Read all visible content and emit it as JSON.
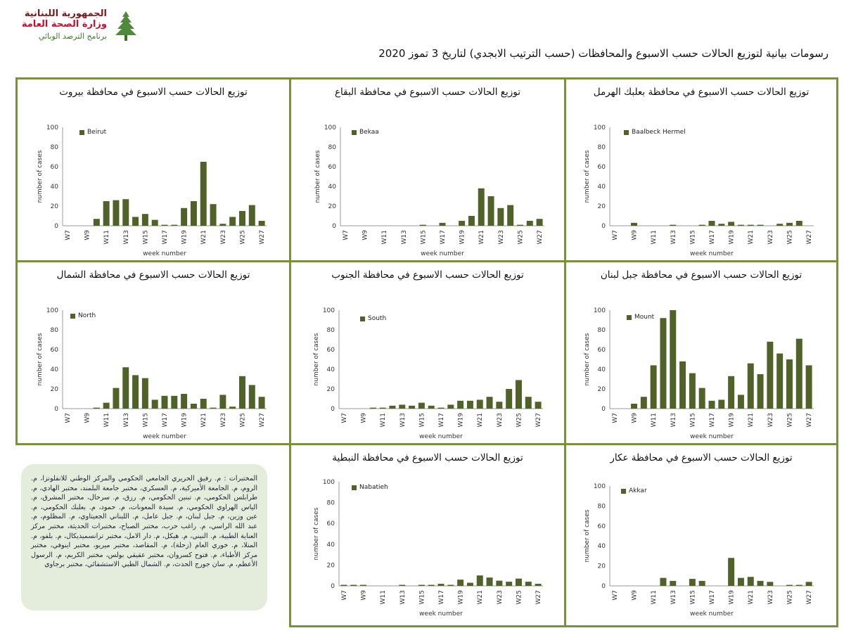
{
  "header": {
    "logo_line1": "الجمهورية اللبنانية",
    "logo_line2": "وزارة الصحة العامة",
    "logo_line3": "برنامج الترصد الوبائي",
    "title": "رسومات بيانية لتوزيع الحالات حسب الاسبوع والمحافظات (حسب الترتيب الابجدي) لتاريخ 3 تموز 2020"
  },
  "colors": {
    "bar": "#4f6228",
    "border": "#76923c",
    "note_bg": "#e4eddc"
  },
  "note": {
    "text": "المختبرات : م. رفيق الحريري الجامعي الحكومي والمركز الوطني للانفلونزا، م. الروم، م. الجامعة الأميركية، م. العسكري، مختبر جامعة البلمند، مختبر الهادي، م. طرابلس الحكومي، م. تبنين الحكومي، م. رزق، م. سرحال، مختبر المشرق، م. الياس الهراوي الحكومي، م. سيدة المعونات، م. حمود، م. بعلبك الحكومي، م. عين وزين، م. جبل لبنان، م. جبل عامل، م. اللبناني الجعيتاوي، م. المظلوم، م. عبد الله الراسي، م. راغب حرب، مختبر الصباح، مختبرات الحديثة، مختبر مركز العناية الطبية، م. النيني، م. هيكل، م. دار الامل، مختبر ترانسميديكال، م. بلفو، م. المنلا، م. خوري العام (زحلة)، م. المقاصد، مختبر ميريو، مختبر اينوفي، مختبر مركز الأطباء، م. فتوح كسروان، مختبر عقيقي بولس، مختبر الكريم، م. الرسول الأعظم، م. سان جورج الحدث، م. الشمال الطبي الاستشفائي، مختبر برجاوي"
  },
  "chart_data": [
    {
      "type": "bar",
      "title": "توزيع الحالات حسب الاسبوع في محافظة بيروت",
      "series": [
        {
          "name": "Beirut",
          "values": [
            0,
            0,
            0,
            7,
            25,
            26,
            27,
            9,
            12,
            6,
            1,
            1,
            18,
            25,
            65,
            22,
            2,
            9,
            15,
            21,
            5
          ]
        }
      ],
      "categories": [
        "W7",
        "W8",
        "W9",
        "W10",
        "W11",
        "W12",
        "W13",
        "W14",
        "W15",
        "W16",
        "W17",
        "W18",
        "W19",
        "W20",
        "W21",
        "W22",
        "W23",
        "W24",
        "W25",
        "W26",
        "W27"
      ],
      "xtick_labels": [
        "W7",
        "W9",
        "W11",
        "W13",
        "W15",
        "W17",
        "W19",
        "W21",
        "W23",
        "W25",
        "W27"
      ],
      "xlabel": "week number",
      "ylabel": "number of cases",
      "ylim": [
        0,
        100
      ],
      "yticks": [
        0,
        20,
        40,
        60,
        80,
        100
      ],
      "legend_position": "top-left"
    },
    {
      "type": "bar",
      "title": "توزيع الحالات حسب الاسبوع في محافظة البقاع",
      "series": [
        {
          "name": "Bekaa",
          "values": [
            0,
            0,
            0,
            0,
            0,
            0,
            0,
            0,
            1,
            0,
            3,
            0,
            5,
            10,
            38,
            30,
            18,
            21,
            1,
            5,
            7
          ]
        }
      ],
      "categories": [
        "W7",
        "W8",
        "W9",
        "W10",
        "W11",
        "W12",
        "W13",
        "W14",
        "W15",
        "W16",
        "W17",
        "W18",
        "W19",
        "W20",
        "W21",
        "W22",
        "W23",
        "W24",
        "W25",
        "W26",
        "W27"
      ],
      "xtick_labels": [
        "W7",
        "W9",
        "W11",
        "W13",
        "W15",
        "W17",
        "W19",
        "W21",
        "W23",
        "W25",
        "W27"
      ],
      "xlabel": "week number",
      "ylabel": "number of cases",
      "ylim": [
        0,
        100
      ],
      "yticks": [
        0,
        20,
        40,
        60,
        80,
        100
      ],
      "legend_position": "top-left"
    },
    {
      "type": "bar",
      "title": "توزيع الحالات حسب الاسبوع في محافظة بعلبك الهرمل",
      "series": [
        {
          "name": "Baalbeck Hermel",
          "values": [
            0,
            0,
            3,
            0,
            0,
            0,
            1,
            0,
            0,
            1,
            5,
            2,
            4,
            1,
            1,
            1,
            0,
            2,
            3,
            5,
            0
          ]
        }
      ],
      "categories": [
        "W7",
        "W8",
        "W9",
        "W10",
        "W11",
        "W12",
        "W13",
        "W14",
        "W15",
        "W16",
        "W17",
        "W18",
        "W19",
        "W20",
        "W21",
        "W22",
        "W23",
        "W24",
        "W25",
        "W26",
        "W27"
      ],
      "xtick_labels": [
        "W7",
        "W9",
        "W11",
        "W13",
        "W15",
        "W17",
        "W19",
        "W21",
        "W23",
        "W25",
        "W27"
      ],
      "xlabel": "week number",
      "ylabel": "number of cases",
      "ylim": [
        0,
        100
      ],
      "yticks": [
        0,
        20,
        40,
        60,
        80,
        100
      ],
      "legend_position": "top-left"
    },
    {
      "type": "bar",
      "title": "توزيع الحالات حسب الاسبوع في محافظة الشمال",
      "series": [
        {
          "name": "North",
          "values": [
            0,
            0,
            0,
            1,
            6,
            21,
            42,
            34,
            31,
            9,
            13,
            13,
            15,
            5,
            10,
            1,
            14,
            2,
            33,
            24,
            12
          ]
        }
      ],
      "categories": [
        "W7",
        "W8",
        "W9",
        "W10",
        "W11",
        "W12",
        "W13",
        "W14",
        "W15",
        "W16",
        "W17",
        "W18",
        "W19",
        "W20",
        "W21",
        "W22",
        "W23",
        "W24",
        "W25",
        "W26",
        "W27"
      ],
      "xtick_labels": [
        "W7",
        "W9",
        "W11",
        "W13",
        "W15",
        "W17",
        "W19",
        "W21",
        "W23",
        "W25",
        "W27"
      ],
      "xlabel": "week number",
      "ylabel": "number of cases",
      "ylim": [
        0,
        100
      ],
      "yticks": [
        0,
        20,
        40,
        60,
        80,
        100
      ],
      "legend_position": "top-left"
    },
    {
      "type": "bar",
      "title": "توزيع الحالات حسب الاسبوع في محافظة الجنوب",
      "series": [
        {
          "name": "South",
          "values": [
            0,
            0,
            0,
            1,
            1,
            3,
            4,
            3,
            6,
            3,
            1,
            4,
            8,
            8,
            9,
            12,
            7,
            20,
            29,
            12,
            7
          ]
        }
      ],
      "categories": [
        "W7",
        "W8",
        "W9",
        "W10",
        "W11",
        "W12",
        "W13",
        "W14",
        "W15",
        "W16",
        "W17",
        "W18",
        "W19",
        "W20",
        "W21",
        "W22",
        "W23",
        "W24",
        "W25",
        "W26",
        "W27"
      ],
      "xtick_labels": [
        "W7",
        "W9",
        "W11",
        "W13",
        "W15",
        "W17",
        "W19",
        "W21",
        "W23",
        "W25",
        "W27"
      ],
      "xlabel": "week number",
      "ylabel": "number of cases",
      "ylim": [
        0,
        100
      ],
      "yticks": [
        0,
        20,
        40,
        60,
        80,
        100
      ],
      "legend_position": "top-left"
    },
    {
      "type": "bar",
      "title": "توزيع الحالات حسب الاسبوع في محافظة جبل لبنان",
      "series": [
        {
          "name": "Mount",
          "values": [
            0,
            0,
            5,
            12,
            44,
            92,
            100,
            48,
            36,
            21,
            8,
            9,
            33,
            14,
            46,
            35,
            68,
            56,
            50,
            71,
            44
          ]
        }
      ],
      "categories": [
        "W7",
        "W8",
        "W9",
        "W10",
        "W11",
        "W12",
        "W13",
        "W14",
        "W15",
        "W16",
        "W17",
        "W18",
        "W19",
        "W20",
        "W21",
        "W22",
        "W23",
        "W24",
        "W25",
        "W26",
        "W27"
      ],
      "xtick_labels": [
        "W7",
        "W9",
        "W11",
        "W13",
        "W15",
        "W17",
        "W19",
        "W21",
        "W23",
        "W25",
        "W27"
      ],
      "xlabel": "week number",
      "ylabel": "number of cases",
      "ylim": [
        0,
        100
      ],
      "yticks": [
        0,
        20,
        40,
        60,
        80,
        100
      ],
      "legend_position": "top-left"
    },
    {
      "type": "bar",
      "title": "توزيع الحالات حسب الاسبوع في محافظة النبطية",
      "series": [
        {
          "name": "Nabatieh",
          "values": [
            1,
            1,
            1,
            0,
            0,
            0,
            1,
            0,
            1,
            1,
            2,
            1,
            6,
            3,
            10,
            8,
            5,
            4,
            7,
            4,
            2
          ]
        }
      ],
      "categories": [
        "W7",
        "W8",
        "W9",
        "W10",
        "W11",
        "W12",
        "W13",
        "W14",
        "W15",
        "W16",
        "W17",
        "W18",
        "W19",
        "W20",
        "W21",
        "W22",
        "W23",
        "W24",
        "W25",
        "W26",
        "W27"
      ],
      "xtick_labels": [
        "W7",
        "W9",
        "W11",
        "W13",
        "W15",
        "W17",
        "W19",
        "W21",
        "W23",
        "W25",
        "W27"
      ],
      "xlabel": "week number",
      "ylabel": "number of cases",
      "ylim": [
        0,
        100
      ],
      "yticks": [
        0,
        20,
        40,
        60,
        80,
        100
      ],
      "legend_position": "top-left"
    },
    {
      "type": "bar",
      "title": "توزيع الحالات حسب الاسبوع في محافظة عكار",
      "series": [
        {
          "name": "Akkar",
          "values": [
            0,
            0,
            0,
            0,
            0,
            8,
            5,
            0,
            7,
            5,
            0,
            0,
            28,
            8,
            9,
            5,
            4,
            0,
            1,
            1,
            4
          ]
        }
      ],
      "categories": [
        "W7",
        "W8",
        "W9",
        "W10",
        "W11",
        "W12",
        "W13",
        "W14",
        "W15",
        "W16",
        "W17",
        "W18",
        "W19",
        "W20",
        "W21",
        "W22",
        "W23",
        "W24",
        "W25",
        "W26",
        "W27"
      ],
      "xtick_labels": [
        "W7",
        "W9",
        "W11",
        "W13",
        "W15",
        "W17",
        "W19",
        "W21",
        "W23",
        "W25",
        "W27"
      ],
      "xlabel": "week number",
      "ylabel": "number of cases",
      "ylim": [
        0,
        100
      ],
      "yticks": [
        0,
        20,
        40,
        60,
        80,
        100
      ],
      "legend_position": "top-left"
    }
  ]
}
